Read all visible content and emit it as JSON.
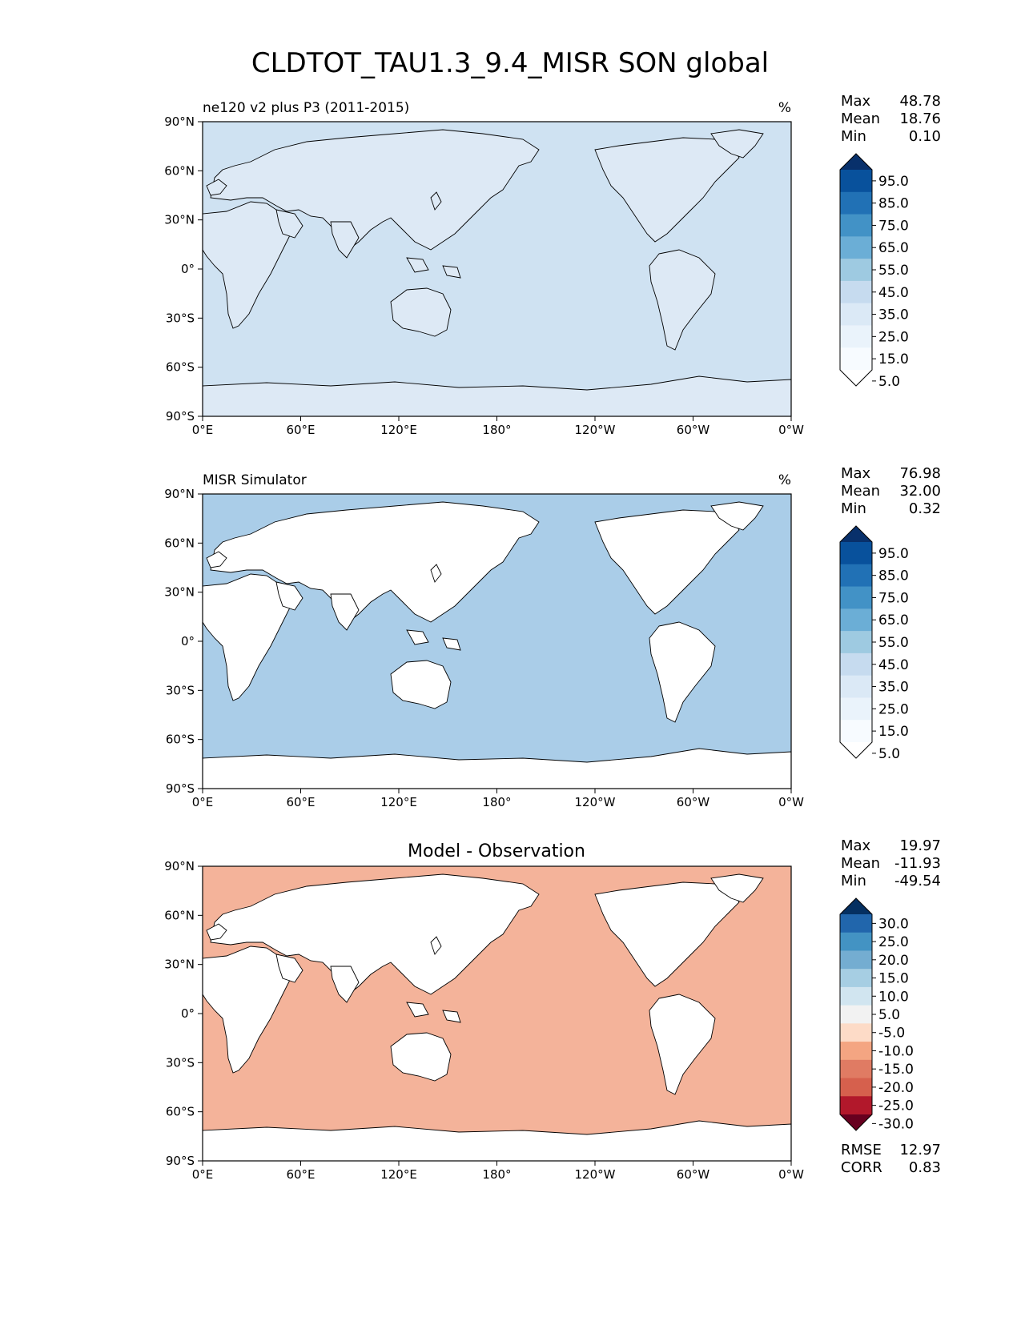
{
  "title": "CLDTOT_TAU1.3_9.4_MISR SON global",
  "lat_ticks": [
    "90°N",
    "60°N",
    "30°N",
    "0°",
    "30°S",
    "60°S",
    "90°S"
  ],
  "lon_ticks": [
    "0°E",
    "60°E",
    "120°E",
    "180°",
    "120°W",
    "60°W",
    "0°W"
  ],
  "panels": [
    {
      "left_title": "ne120 v2 plus P3 (2011-2015)",
      "center_title": "",
      "right_title": "%",
      "stats": [
        {
          "label": "Max",
          "value": "48.78"
        },
        {
          "label": "Mean",
          "value": "18.76"
        },
        {
          "label": "Min",
          "value": "0.10"
        }
      ],
      "colorbar_labels": [
        "95.0",
        "85.0",
        "75.0",
        "65.0",
        "55.0",
        "45.0",
        "35.0",
        "25.0",
        "15.0",
        "5.0"
      ],
      "colorbar_colors": [
        "#08306b",
        "#08519c",
        "#2171b5",
        "#4292c6",
        "#6baed6",
        "#9ecae1",
        "#c6dbef",
        "#dbe9f6",
        "#eaf3fb",
        "#f7fbff",
        "#ffffff"
      ],
      "ocean_color": "#cfe2f2",
      "land_color": "#dde9f5",
      "extra": []
    },
    {
      "left_title": "MISR Simulator",
      "center_title": "",
      "right_title": "%",
      "stats": [
        {
          "label": "Max",
          "value": "76.98"
        },
        {
          "label": "Mean",
          "value": "32.00"
        },
        {
          "label": "Min",
          "value": "0.32"
        }
      ],
      "colorbar_labels": [
        "95.0",
        "85.0",
        "75.0",
        "65.0",
        "55.0",
        "45.0",
        "35.0",
        "25.0",
        "15.0",
        "5.0"
      ],
      "colorbar_colors": [
        "#08306b",
        "#08519c",
        "#2171b5",
        "#4292c6",
        "#6baed6",
        "#9ecae1",
        "#c6dbef",
        "#dbe9f6",
        "#eaf3fb",
        "#f7fbff",
        "#ffffff"
      ],
      "ocean_color": "#aacde8",
      "land_color": "#ffffff",
      "extra": []
    },
    {
      "left_title": "",
      "center_title": "Model - Observation",
      "right_title": "",
      "stats": [
        {
          "label": "Max",
          "value": "19.97"
        },
        {
          "label": "Mean",
          "value": "-11.93"
        },
        {
          "label": "Min",
          "value": "-49.54"
        }
      ],
      "colorbar_labels": [
        "30.0",
        "25.0",
        "20.0",
        "15.0",
        "10.0",
        "5.0",
        "-5.0",
        "-10.0",
        "-15.0",
        "-20.0",
        "-25.0",
        "-30.0"
      ],
      "colorbar_colors": [
        "#053061",
        "#2166ac",
        "#4393c3",
        "#74add1",
        "#a6cee3",
        "#d1e5f0",
        "#f2f2f2",
        "#fddbc7",
        "#f4a582",
        "#e07b63",
        "#d6604d",
        "#b2182b",
        "#67001f"
      ],
      "ocean_color": "#f4b39a",
      "land_color": "#ffffff",
      "extra": [
        {
          "label": "RMSE",
          "value": "12.97"
        },
        {
          "label": "CORR",
          "value": "0.83"
        }
      ]
    }
  ]
}
